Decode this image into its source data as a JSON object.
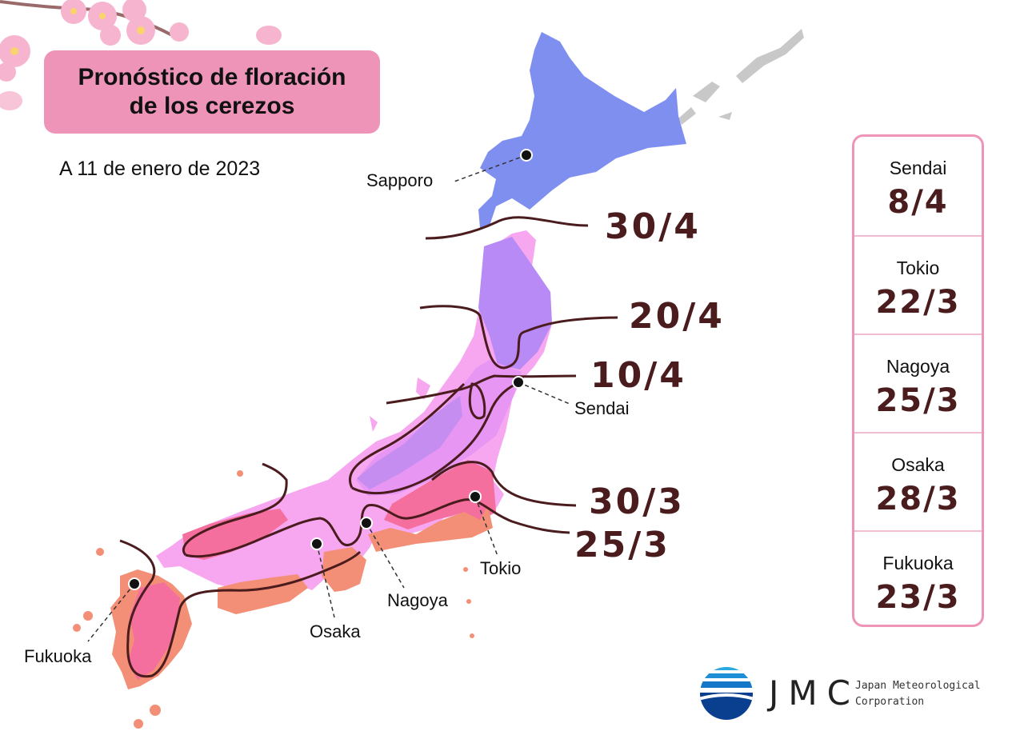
{
  "title": {
    "line1": "Pronóstico de floración",
    "line2": "de los cerezos"
  },
  "as_of": "A 11 de enero de 2023",
  "cities": {
    "sapporo": "Sapporo",
    "sendai": "Sendai",
    "tokio": "Tokio",
    "nagoya": "Nagoya",
    "osaka": "Osaka",
    "fukuoka": "Fukuoka"
  },
  "isolines": {
    "d304": "30/4",
    "d204": "20/4",
    "d104": "10/4",
    "d303": "30/3",
    "d253": "25/3"
  },
  "panel": {
    "items": [
      {
        "city": "Sendai",
        "date": "8/4"
      },
      {
        "city": "Tokio",
        "date": "22/3"
      },
      {
        "city": "Nagoya",
        "date": "25/3"
      },
      {
        "city": "Osaka",
        "date": "28/3"
      },
      {
        "city": "Fukuoka",
        "date": "23/3"
      }
    ]
  },
  "logo": {
    "letters": "JMC",
    "name_line1": "Japan Meteorological",
    "name_line2": "Corporation"
  },
  "colors": {
    "title_bg": "#ee94b8",
    "date_text": "#4a1c1e",
    "zone_late_april": "#7f8ff0",
    "zone_april_20": "#b78af5",
    "zone_april_10": "#e796f4",
    "zone_april_early": "#f7a7f0",
    "zone_march_30": "#f46f9e",
    "zone_march_25": "#f48f77",
    "northern_islands": "#c8c8c8"
  }
}
